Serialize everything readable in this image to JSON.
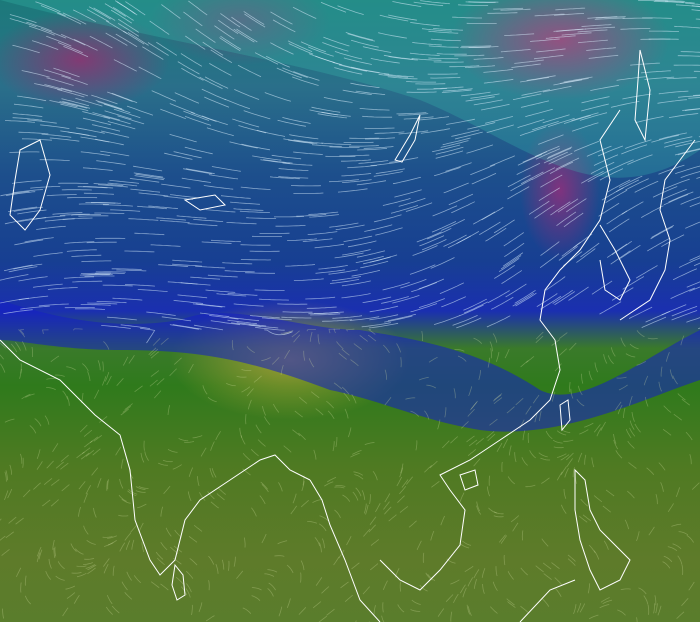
{
  "map": {
    "overlay": "wind",
    "colors": {
      "calm": "#2f7a1c",
      "low": "#1a2fb0",
      "mid": "#1c7a7a",
      "high": "#c01e6e",
      "streak": "#e8f4ff",
      "coastline": "#ffffff"
    },
    "icons": [
      "wind-streaks",
      "coastlines"
    ]
  }
}
